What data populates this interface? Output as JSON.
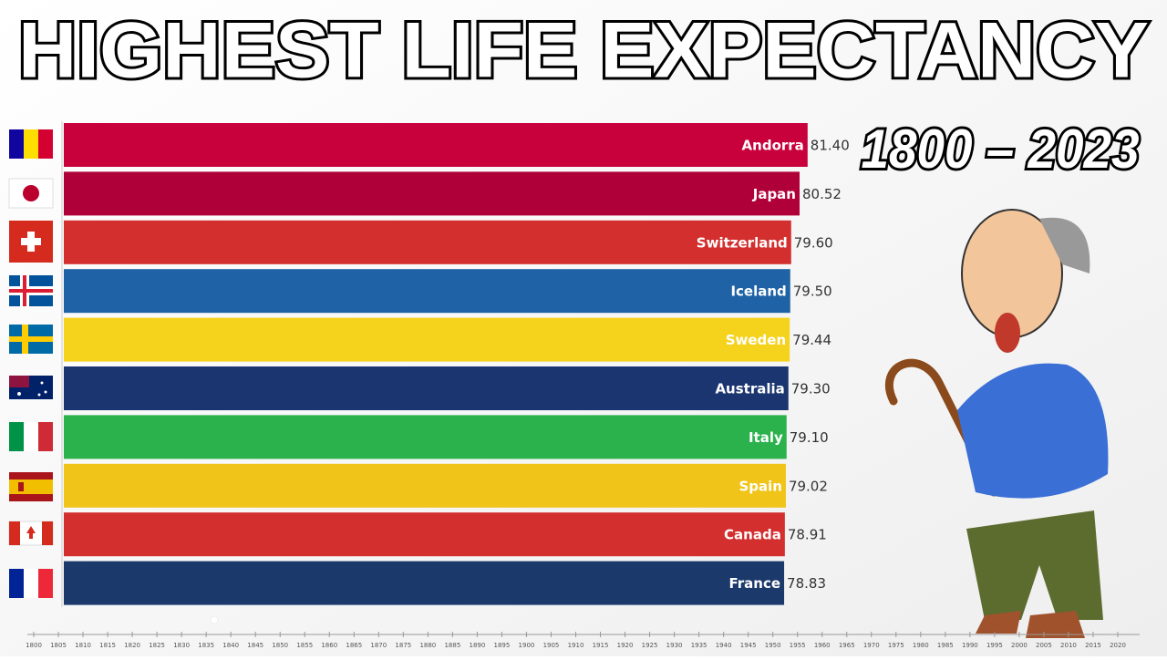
{
  "chart_data": {
    "type": "bar",
    "orientation": "horizontal",
    "title": "HIGHEST LIFE EXPECTANCY",
    "subtitle": "1800 – 2023",
    "categories": [
      "Andorra",
      "Japan",
      "Switzerland",
      "Iceland",
      "Sweden",
      "Australia",
      "Italy",
      "Spain",
      "Canada",
      "France"
    ],
    "values": [
      81.4,
      80.52,
      79.6,
      79.5,
      79.44,
      79.3,
      79.1,
      79.02,
      78.91,
      78.83
    ],
    "value_labels": [
      "81.40",
      "80.52",
      "79.60",
      "79.50",
      "79.44",
      "79.30",
      "79.10",
      "79.02",
      "78.91",
      "78.83"
    ],
    "colors": [
      "#c8003c",
      "#b0003a",
      "#d32f2f",
      "#1f63a6",
      "#f5d21c",
      "#1a3570",
      "#2bb24c",
      "#f0c419",
      "#d32f2f",
      "#1b3a6b"
    ],
    "xlim": [
      0,
      90
    ],
    "timeline": [
      1800,
      1805,
      1810,
      1815,
      1820,
      1825,
      1830,
      1835,
      1840,
      1845,
      1850,
      1855,
      1860,
      1865,
      1870,
      1875,
      1880,
      1885,
      1890,
      1895,
      1900,
      1905,
      1910,
      1915,
      1920,
      1925,
      1930,
      1935,
      1940,
      1945,
      1950,
      1955,
      1960,
      1965,
      1970,
      1975,
      1980,
      1985,
      1990,
      1995,
      2000,
      2005,
      2010,
      2015,
      2020
    ]
  }
}
